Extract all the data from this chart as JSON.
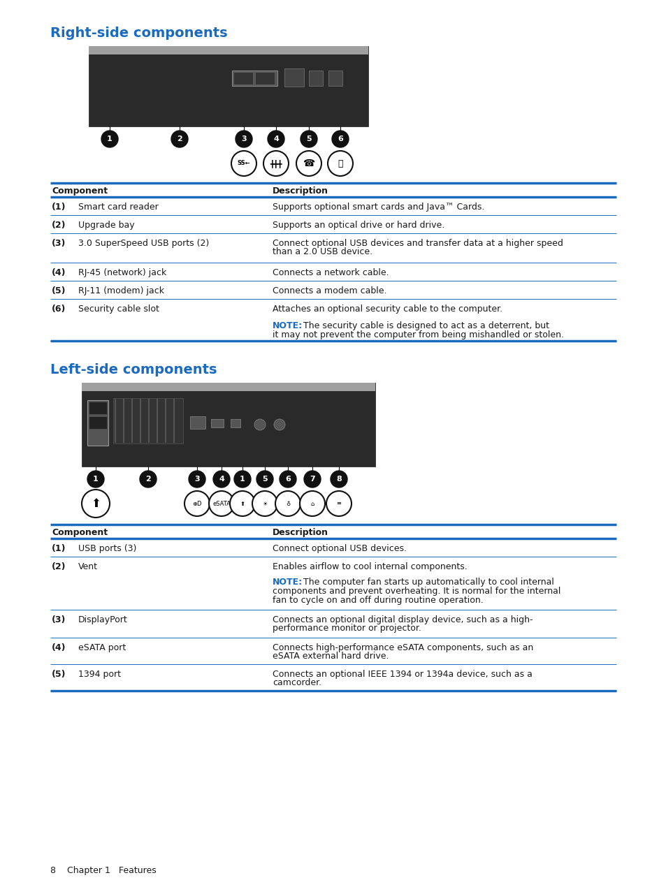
{
  "bg_color": "#ffffff",
  "blue_color": "#1a6bbf",
  "text_color": "#1a1a1a",
  "note_blue": "#1a6bbf",
  "line_color": "#1a6bbf",
  "section1_title": "Right-side components",
  "section2_title": "Left-side components",
  "table1_header": [
    "Component",
    "Description"
  ],
  "table1_rows": [
    [
      "(1)",
      "Smart card reader",
      "Supports optional smart cards and Java™ Cards.",
      false
    ],
    [
      "(2)",
      "Upgrade bay",
      "Supports an optical drive or hard drive.",
      false
    ],
    [
      "(3)",
      "3.0 SuperSpeed USB ports (2)",
      "Connect optional USB devices and transfer data at a higher speed\nthan a 2.0 USB device.",
      false
    ],
    [
      "(4)",
      "RJ-45 (network) jack",
      "Connects a network cable.",
      false
    ],
    [
      "(5)",
      "RJ-11 (modem) jack",
      "Connects a modem cable.",
      false
    ],
    [
      "(6)",
      "Security cable slot",
      "Attaches an optional security cable to the computer.",
      true
    ]
  ],
  "table1_note": "NOTE:   The security cable is designed to act as a deterrent, but it may not prevent the computer from being mishandled or stolen.",
  "table2_rows": [
    [
      "(1)",
      "USB ports (3)",
      "Connect optional USB devices.",
      false
    ],
    [
      "(2)",
      "Vent",
      "Enables airflow to cool internal components.",
      true
    ],
    [
      "(3)",
      "DisplayPort",
      "Connects an optional digital display device, such as a high-\nperformance monitor or projector.",
      false
    ],
    [
      "(4)",
      "eSATA port",
      "Connects high-performance eSATA components, such as an\neSATA external hard drive.",
      false
    ],
    [
      "(5)",
      "1394 port",
      "Connects an optional IEEE 1394 or 1394a device, such as a\ncamcorder.",
      false
    ]
  ],
  "table2_note": "NOTE:   The computer fan starts up automatically to cool internal components and prevent overheating. It is normal for the internal fan to cycle on and off during routine operation.",
  "footer_text": "8    Chapter 1   Features"
}
